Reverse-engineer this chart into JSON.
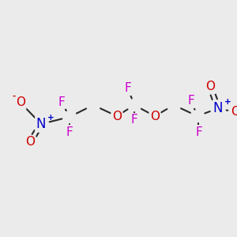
{
  "bg_color": "#ebebeb",
  "bond_color": "#2a2a2a",
  "bond_width": 1.5,
  "atom_colors": {
    "C": "#2a2a2a",
    "F": "#cc00cc",
    "O": "#cc0000",
    "N": "#0000cc",
    "minus": "#cc0000",
    "plus": "#0000cc"
  },
  "font_size_atom": 11,
  "font_size_charge": 7.5,
  "figsize": [
    3.0,
    3.0
  ],
  "dpi": 100,
  "xlim": [
    0,
    300
  ],
  "ylim": [
    0,
    300
  ]
}
